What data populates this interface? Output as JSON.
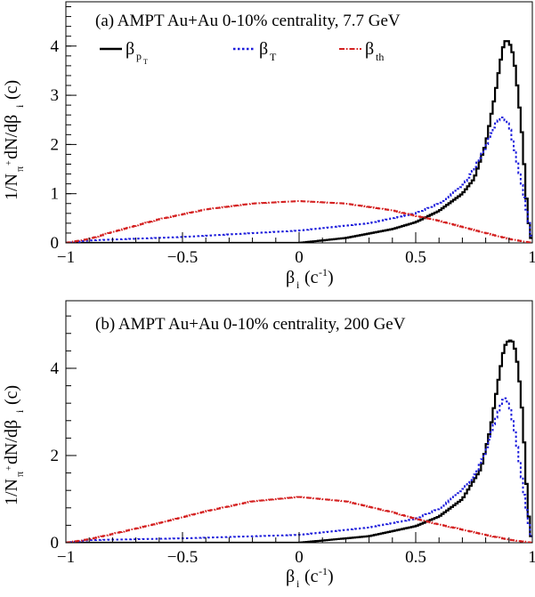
{
  "chart_data": [
    {
      "type": "line",
      "title": "(a) AMPT Au+Au 0-10% centrality, 7.7 GeV",
      "xlabel": "β_i (c^-1)",
      "ylabel": "1/N_π+ dN/dβ_i (c)",
      "xlim": [
        -1,
        1
      ],
      "ylim": [
        0,
        4.9
      ],
      "xticks": [
        "−1",
        "−0.5",
        "0",
        "0.5",
        "1"
      ],
      "yticks": [
        "0",
        "1",
        "2",
        "3",
        "4"
      ],
      "legend": "top",
      "series": [
        {
          "name": "β_pT",
          "color": "#000000",
          "style": "solid",
          "x": [
            -1,
            0,
            0.2,
            0.4,
            0.5,
            0.6,
            0.7,
            0.75,
            0.8,
            0.84,
            0.86,
            0.88,
            0.9,
            0.92,
            0.94,
            0.96,
            0.97,
            0.98,
            0.99,
            1.0
          ],
          "y": [
            0,
            0,
            0.1,
            0.28,
            0.42,
            0.65,
            1.0,
            1.3,
            2.0,
            3.0,
            3.6,
            4.1,
            4.1,
            3.8,
            3.0,
            2.0,
            1.2,
            0.6,
            0.2,
            0
          ]
        },
        {
          "name": "β_T",
          "color": "#1a1adb",
          "style": "dotted",
          "x": [
            -1,
            -0.95,
            -0.9,
            -0.5,
            0,
            0.3,
            0.5,
            0.6,
            0.7,
            0.75,
            0.8,
            0.84,
            0.87,
            0.9,
            0.92,
            0.95,
            0.97,
            0.99,
            1.0
          ],
          "y": [
            0,
            0.02,
            0.05,
            0.12,
            0.25,
            0.4,
            0.6,
            0.8,
            1.15,
            1.5,
            1.95,
            2.4,
            2.58,
            2.4,
            2.0,
            1.3,
            0.8,
            0.3,
            0
          ]
        },
        {
          "name": "β_th",
          "color": "#d42020",
          "style": "dashdot",
          "x": [
            -1,
            -0.9,
            -0.8,
            -0.6,
            -0.4,
            -0.2,
            0,
            0.2,
            0.4,
            0.5,
            0.6,
            0.8,
            0.9,
            1.0
          ],
          "y": [
            0,
            0.08,
            0.22,
            0.48,
            0.68,
            0.8,
            0.85,
            0.8,
            0.66,
            0.55,
            0.45,
            0.2,
            0.08,
            0
          ]
        }
      ]
    },
    {
      "type": "line",
      "title": "(b) AMPT Au+Au 0-10% centrality, 200 GeV",
      "xlabel": "β_i (c^-1)",
      "ylabel": "1/N_π+ dN/dβ_i (c)",
      "xlim": [
        -1,
        1
      ],
      "ylim": [
        0,
        5.55
      ],
      "xticks": [
        "−1",
        "−0.5",
        "0",
        "0.5",
        "1"
      ],
      "yticks": [
        "0",
        "2",
        "4"
      ],
      "legend": "none",
      "series": [
        {
          "name": "β_pT",
          "color": "#000000",
          "style": "solid",
          "x": [
            -1,
            0,
            0.3,
            0.5,
            0.6,
            0.7,
            0.78,
            0.82,
            0.86,
            0.88,
            0.9,
            0.92,
            0.94,
            0.96,
            0.97,
            0.98,
            0.99,
            1.0
          ],
          "y": [
            0,
            0,
            0.15,
            0.38,
            0.6,
            1.0,
            1.7,
            2.6,
            3.9,
            4.5,
            4.65,
            4.6,
            4.0,
            2.8,
            1.8,
            0.9,
            0.3,
            0
          ]
        },
        {
          "name": "β_T",
          "color": "#1a1adb",
          "style": "dotted",
          "x": [
            -1,
            -0.95,
            -0.9,
            -0.5,
            0,
            0.3,
            0.5,
            0.6,
            0.7,
            0.76,
            0.8,
            0.84,
            0.88,
            0.9,
            0.92,
            0.95,
            0.97,
            0.99,
            1.0
          ],
          "y": [
            0,
            0.03,
            0.06,
            0.1,
            0.18,
            0.35,
            0.55,
            0.78,
            1.2,
            1.6,
            2.1,
            2.8,
            3.35,
            3.2,
            2.7,
            1.7,
            0.9,
            0.3,
            0
          ]
        },
        {
          "name": "β_th",
          "color": "#d42020",
          "style": "dashdot",
          "x": [
            -1,
            -0.9,
            -0.8,
            -0.6,
            -0.4,
            -0.2,
            0,
            0.2,
            0.4,
            0.5,
            0.6,
            0.8,
            0.9,
            1.0
          ],
          "y": [
            0,
            0.08,
            0.2,
            0.45,
            0.72,
            0.95,
            1.05,
            0.95,
            0.7,
            0.55,
            0.42,
            0.18,
            0.07,
            0
          ]
        }
      ]
    }
  ]
}
